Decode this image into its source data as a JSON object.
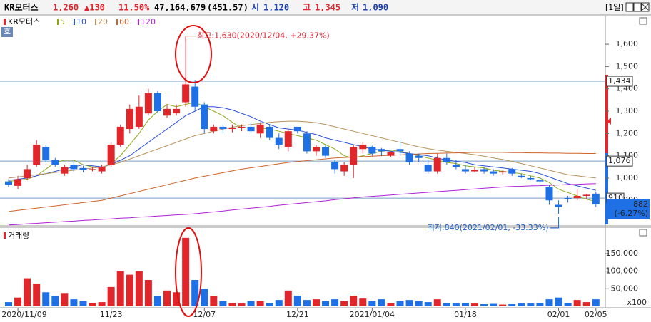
{
  "header": {
    "name": "KR모터스",
    "price": "1,260",
    "change": "▲130",
    "rate": "11.50%",
    "volume": "47,164,679",
    "amount": "(451.57)",
    "open_label": "시",
    "open": "1,120",
    "high_label": "고",
    "high": "1,345",
    "low_label": "저",
    "low": "1,090",
    "period": "[1일]",
    "button": "호"
  },
  "chart_data": [
    {
      "type": "candlestick",
      "legend_title": "KR모터스",
      "up_color": "#e0262b",
      "down_color": "#1f6fe5",
      "open": [
        985,
        965,
        1000,
        1060,
        1140,
        1080,
        1020,
        1060,
        1045,
        1035,
        1030,
        1060,
        1150,
        1220,
        1230,
        1290,
        1380,
        1280,
        1290,
        1340,
        1410,
        1330,
        1210,
        1230,
        1220,
        1225,
        1230,
        1200,
        1230,
        1180,
        1140,
        1230,
        1200,
        1120,
        1140,
        1070,
        1030,
        1060,
        1130,
        1140,
        1130,
        1100,
        1130,
        1110,
        1100,
        1060,
        1030,
        1090,
        1060,
        1040,
        1030,
        1040,
        1030,
        1025,
        1040,
        1010,
        1000,
        990,
        960,
        880,
        910,
        910,
        920,
        930
      ],
      "high": [
        995,
        1010,
        1060,
        1170,
        1150,
        1090,
        1060,
        1070,
        1055,
        1050,
        1060,
        1160,
        1240,
        1330,
        1370,
        1400,
        1390,
        1330,
        1330,
        1630,
        1440,
        1340,
        1240,
        1240,
        1240,
        1240,
        1250,
        1250,
        1240,
        1200,
        1220,
        1230,
        1210,
        1150,
        1150,
        1080,
        1070,
        1150,
        1160,
        1145,
        1135,
        1120,
        1170,
        1120,
        1110,
        1080,
        1110,
        1110,
        1080,
        1060,
        1050,
        1050,
        1040,
        1035,
        1045,
        1020,
        1010,
        1000,
        970,
        900,
        920,
        950,
        930,
        940
      ],
      "low": [
        960,
        950,
        990,
        1050,
        1070,
        1050,
        1010,
        1030,
        1025,
        1030,
        1020,
        1050,
        1140,
        1200,
        1220,
        1280,
        1290,
        1270,
        1280,
        1320,
        1300,
        1200,
        1200,
        1200,
        1205,
        1210,
        1200,
        1180,
        1170,
        1130,
        1120,
        1200,
        1110,
        1100,
        1090,
        1020,
        1010,
        1000,
        1110,
        1100,
        1100,
        1095,
        1100,
        1060,
        1070,
        1020,
        1020,
        1060,
        1040,
        1020,
        1025,
        1020,
        1010,
        1015,
        1010,
        1000,
        990,
        980,
        880,
        840,
        890,
        900,
        905,
        870
      ],
      "close": [
        970,
        995,
        1040,
        1150,
        1080,
        1060,
        1050,
        1040,
        1035,
        1040,
        1050,
        1150,
        1230,
        1310,
        1320,
        1380,
        1300,
        1310,
        1310,
        1420,
        1320,
        1220,
        1230,
        1220,
        1225,
        1230,
        1210,
        1240,
        1180,
        1150,
        1210,
        1210,
        1120,
        1140,
        1100,
        1040,
        1060,
        1140,
        1150,
        1110,
        1120,
        1115,
        1120,
        1070,
        1090,
        1030,
        1090,
        1070,
        1050,
        1030,
        1035,
        1030,
        1020,
        1030,
        1020,
        1005,
        995,
        985,
        900,
        870,
        905,
        920,
        925,
        882
      ],
      "series": [
        {
          "name": "5",
          "color": "#8fa81a",
          "values": [
            985,
            990,
            995,
            1010,
            1040,
            1070,
            1080,
            1080,
            1060,
            1050,
            1045,
            1065,
            1100,
            1150,
            1200,
            1260,
            1300,
            1330,
            1320,
            1330,
            1340,
            1320,
            1300,
            1280,
            1250,
            1225,
            1225,
            1225,
            1220,
            1210,
            1200,
            1190,
            1180,
            1170,
            1150,
            1130,
            1100,
            1090,
            1100,
            1110,
            1120,
            1125,
            1120,
            1110,
            1100,
            1090,
            1080,
            1070,
            1065,
            1055,
            1050,
            1045,
            1035,
            1030,
            1025,
            1020,
            1010,
            1000,
            980,
            950,
            935,
            920,
            905,
            895
          ]
        },
        {
          "name": "10",
          "color": "#2a4fd6",
          "values": [
            990,
            995,
            1000,
            1010,
            1020,
            1030,
            1040,
            1050,
            1060,
            1055,
            1050,
            1060,
            1080,
            1100,
            1130,
            1160,
            1190,
            1220,
            1250,
            1280,
            1300,
            1320,
            1320,
            1315,
            1305,
            1290,
            1275,
            1255,
            1240,
            1225,
            1220,
            1215,
            1205,
            1195,
            1180,
            1170,
            1160,
            1150,
            1140,
            1130,
            1125,
            1120,
            1115,
            1110,
            1105,
            1100,
            1090,
            1080,
            1075,
            1070,
            1060,
            1055,
            1050,
            1045,
            1040,
            1035,
            1030,
            1020,
            1005,
            990,
            975,
            965,
            955,
            945
          ]
        },
        {
          "name": "20",
          "color": "#b8925a",
          "values": [
            1000,
            1005,
            1010,
            1015,
            1020,
            1025,
            1030,
            1035,
            1040,
            1045,
            1050,
            1060,
            1070,
            1085,
            1100,
            1115,
            1130,
            1145,
            1160,
            1175,
            1190,
            1200,
            1210,
            1220,
            1228,
            1235,
            1240,
            1245,
            1250,
            1253,
            1255,
            1255,
            1252,
            1248,
            1240,
            1230,
            1220,
            1210,
            1200,
            1190,
            1180,
            1170,
            1160,
            1150,
            1140,
            1132,
            1125,
            1120,
            1115,
            1110,
            1105,
            1098,
            1090,
            1083,
            1075,
            1065,
            1055,
            1045,
            1035,
            1025,
            1015,
            1010,
            1005,
            1000
          ]
        },
        {
          "name": "60",
          "color": "#d0642a",
          "values": [
            850,
            855,
            860,
            865,
            870,
            875,
            880,
            885,
            890,
            895,
            900,
            910,
            920,
            930,
            940,
            950,
            960,
            970,
            980,
            990,
            1000,
            1008,
            1016,
            1024,
            1032,
            1040,
            1046,
            1052,
            1058,
            1064,
            1070,
            1074,
            1078,
            1082,
            1086,
            1090,
            1092,
            1094,
            1096,
            1098,
            1100,
            1102,
            1104,
            1106,
            1108,
            1110,
            1111,
            1112,
            1113,
            1114,
            1115,
            1115,
            1115,
            1115,
            1114,
            1114,
            1113,
            1113,
            1112,
            1112,
            1111,
            1111,
            1110,
            1110
          ]
        },
        {
          "name": "120",
          "color": "#b020d8",
          "values": [
            790,
            792,
            795,
            797,
            800,
            802,
            805,
            807,
            810,
            812,
            815,
            817,
            820,
            822,
            825,
            827,
            830,
            832,
            835,
            837,
            840,
            844,
            848,
            852,
            857,
            861,
            865,
            869,
            873,
            878,
            882,
            886,
            890,
            894,
            898,
            903,
            907,
            911,
            915,
            918,
            921,
            924,
            927,
            930,
            933,
            936,
            939,
            942,
            945,
            948,
            951,
            954,
            957,
            960,
            962,
            963,
            965,
            966,
            968,
            969,
            971,
            972,
            974,
            975
          ]
        }
      ],
      "ylim": [
        789,
        1728
      ],
      "yticks": [
        900,
        {
          "value": 1000,
          "label": "1,000"
        },
        {
          "value": 1100,
          "label": "1,100"
        },
        {
          "value": 1200,
          "label": "1,200"
        },
        {
          "value": 1300,
          "label": "1,300"
        },
        {
          "value": 1400,
          "label": "1,400"
        },
        {
          "value": 1500,
          "label": "1,500"
        },
        {
          "value": 1600,
          "label": "1,600"
        }
      ],
      "reference_lines": [
        {
          "value": 1434,
          "label": "1,434"
        },
        {
          "value": 1076,
          "label": "1,076"
        },
        910
      ],
      "current_price": 882,
      "current_change": "(-6.27%)",
      "annotations": [
        "최고:1,630(2020/12/04, +29.37%)",
        "최저:840(2021/02/01, -33.33%)"
      ]
    },
    {
      "type": "bar",
      "title": "거래량",
      "categories": [
        null,
        "2020/11/09",
        null,
        null,
        null,
        null,
        null,
        null,
        null,
        null,
        null,
        "11/23",
        null,
        null,
        null,
        null,
        null,
        null,
        null,
        null,
        null,
        "12/07",
        null,
        null,
        null,
        null,
        null,
        null,
        null,
        null,
        null,
        "12/21",
        null,
        null,
        null,
        null,
        null,
        null,
        null,
        "2021/01/04",
        null,
        null,
        null,
        null,
        null,
        null,
        null,
        null,
        null,
        "01/18",
        null,
        null,
        null,
        null,
        null,
        null,
        null,
        null,
        null,
        "02/01",
        null,
        null,
        null,
        "02/05"
      ],
      "values": [
        12000,
        25000,
        80000,
        65000,
        40000,
        30000,
        38000,
        20000,
        15000,
        10000,
        12000,
        55000,
        100000,
        90000,
        100000,
        75000,
        30000,
        45000,
        40000,
        195000,
        75000,
        50000,
        30000,
        15000,
        10000,
        8000,
        15000,
        15000,
        10000,
        18000,
        45000,
        30000,
        18000,
        20000,
        15000,
        20000,
        15000,
        30000,
        22000,
        15000,
        20000,
        10000,
        15000,
        18000,
        15000,
        12000,
        20000,
        10000,
        8000,
        10000,
        8000,
        6000,
        7000,
        5000,
        6000,
        8000,
        8000,
        10000,
        20000,
        25000,
        10000,
        18000,
        12000,
        20000
      ],
      "ylim": [
        0,
        219000
      ],
      "yticks": [
        {
          "value": 50000,
          "label": "50,000"
        },
        {
          "value": 100000,
          "label": "100,000"
        },
        {
          "value": 150000,
          "label": "150,000"
        }
      ],
      "unit_label": "x100"
    }
  ]
}
